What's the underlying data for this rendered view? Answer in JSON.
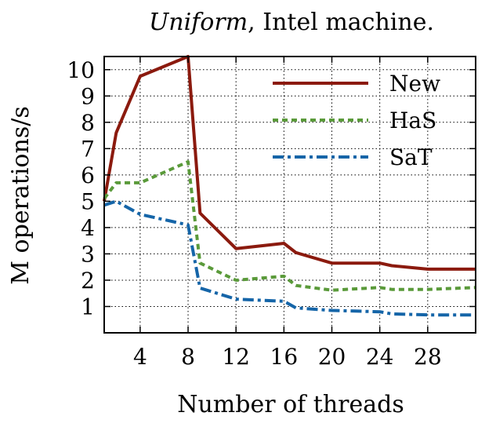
{
  "chart_data": {
    "type": "line",
    "title_italic": "Uniform",
    "title_rest": ", Intel machine.",
    "xlabel": "Number of threads",
    "ylabel": "M operations/s",
    "xlim": [
      1,
      32
    ],
    "ylim": [
      0,
      10.5
    ],
    "xticks": [
      4,
      8,
      12,
      16,
      20,
      24,
      28
    ],
    "yticks": [
      1,
      2,
      3,
      4,
      5,
      6,
      7,
      8,
      9,
      10
    ],
    "grid": true,
    "legend_position": "top-right",
    "series": [
      {
        "name": "New",
        "color": "#8b1a0e",
        "dash": "solid",
        "points": [
          [
            1,
            5.0
          ],
          [
            2,
            7.6
          ],
          [
            4,
            9.75
          ],
          [
            8,
            10.5
          ],
          [
            9,
            4.55
          ],
          [
            12,
            3.2
          ],
          [
            16,
            3.4
          ],
          [
            17,
            3.05
          ],
          [
            20,
            2.65
          ],
          [
            24,
            2.65
          ],
          [
            25,
            2.55
          ],
          [
            28,
            2.42
          ],
          [
            32,
            2.42
          ]
        ]
      },
      {
        "name": "HaS",
        "color": "#5a9a3a",
        "dash": "dotted",
        "points": [
          [
            1,
            5.1
          ],
          [
            2,
            5.7
          ],
          [
            4,
            5.7
          ],
          [
            8,
            6.5
          ],
          [
            9,
            2.65
          ],
          [
            12,
            2.0
          ],
          [
            16,
            2.15
          ],
          [
            17,
            1.8
          ],
          [
            20,
            1.62
          ],
          [
            24,
            1.72
          ],
          [
            25,
            1.65
          ],
          [
            28,
            1.65
          ],
          [
            32,
            1.72
          ]
        ]
      },
      {
        "name": "SaT",
        "color": "#1565a8",
        "dash": "dashdot",
        "points": [
          [
            1,
            4.85
          ],
          [
            2,
            5.0
          ],
          [
            4,
            4.5
          ],
          [
            8,
            4.1
          ],
          [
            9,
            1.7
          ],
          [
            12,
            1.28
          ],
          [
            16,
            1.2
          ],
          [
            17,
            0.95
          ],
          [
            20,
            0.85
          ],
          [
            24,
            0.8
          ],
          [
            25,
            0.72
          ],
          [
            28,
            0.68
          ],
          [
            32,
            0.68
          ]
        ]
      }
    ]
  }
}
